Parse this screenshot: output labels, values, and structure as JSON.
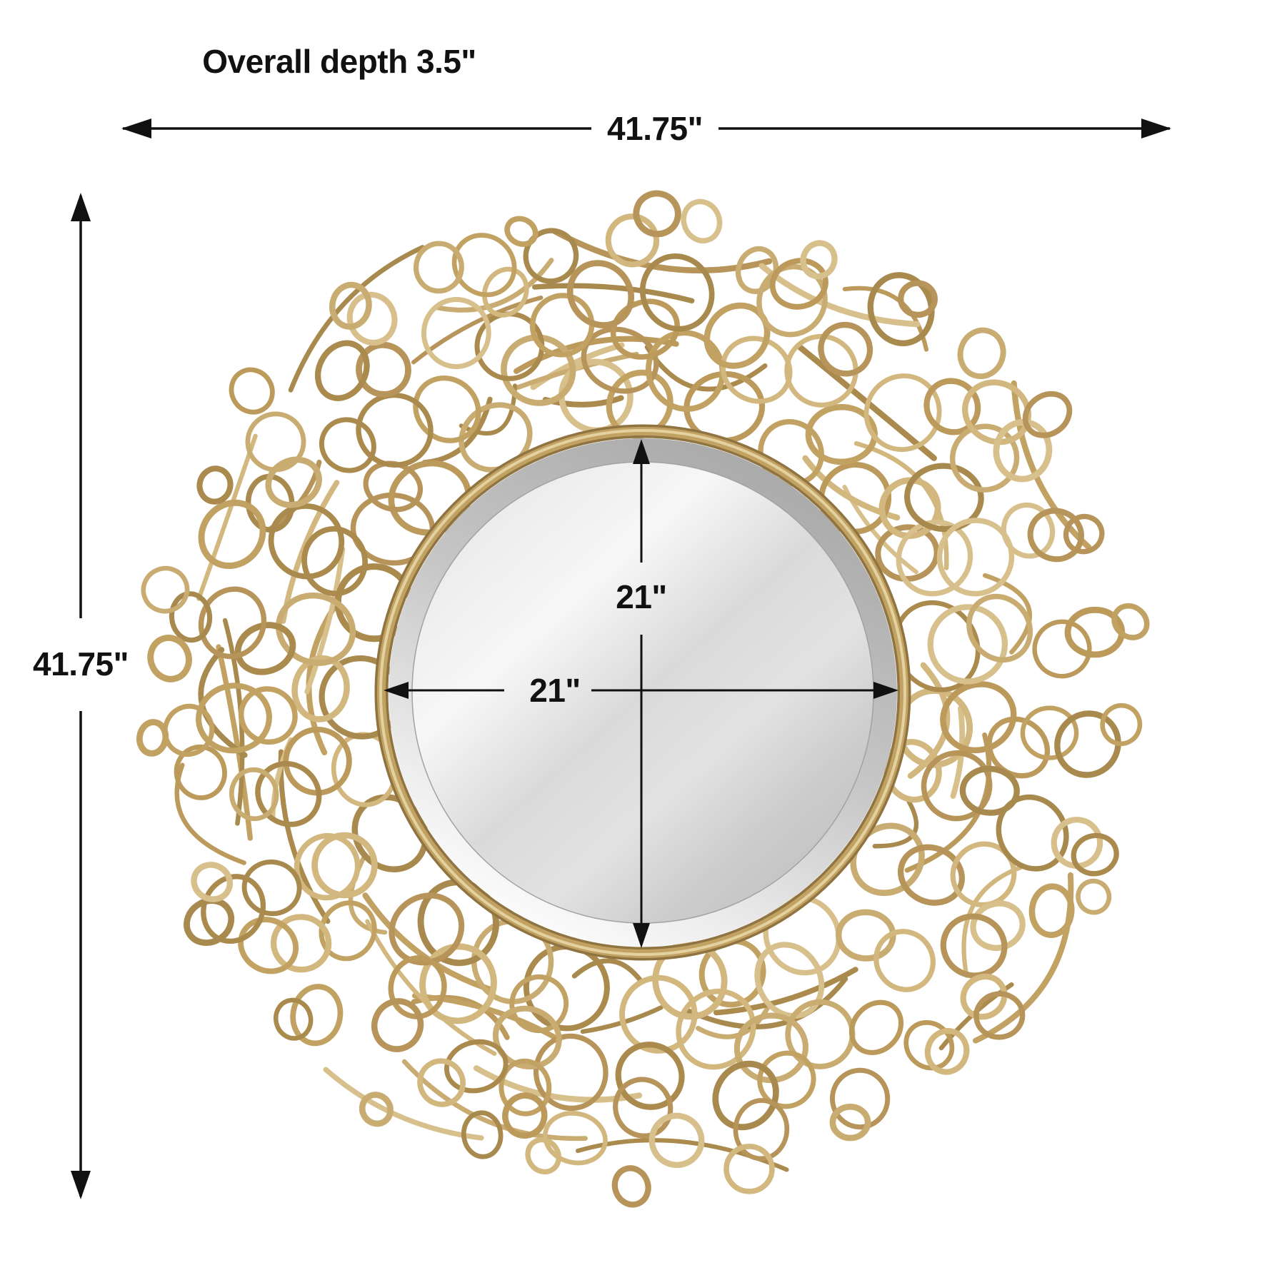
{
  "diagram": {
    "labels": {
      "depth": "Overall depth 3.5\"",
      "overall_width": "41.75\"",
      "overall_height": "41.75\"",
      "mirror_width": "21\"",
      "mirror_height": "21\""
    },
    "colors": {
      "background": "#ffffff",
      "dimension_line": "#111111",
      "text": "#111111",
      "gold_dark": "#8f7340",
      "gold_mid": "#c2a263",
      "gold_light": "#e3d1a0",
      "bevel_dark": "#a9a9a9",
      "bevel_light": "#ffffff",
      "glass_light": "#f6f6f6",
      "glass_dark": "#c3c3c3"
    },
    "wreath_palette": [
      "#c9ac72",
      "#bb9a5c",
      "#d2b77f",
      "#ab8a4e",
      "#c2a263",
      "#b6945a",
      "#d8c08c",
      "#a98a4e"
    ]
  }
}
